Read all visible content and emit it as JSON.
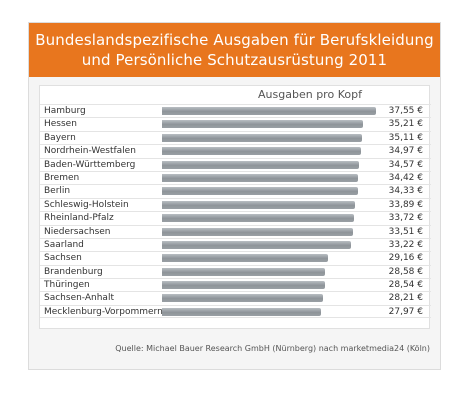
{
  "chart_data": {
    "type": "bar",
    "orientation": "horizontal",
    "title": "Bundeslandspezifische Ausgaben für Berufskleidung und Persönliche Schutzausrüstung 2011",
    "title_lines": [
      "Bundeslandspezifische Ausgaben für Berufskleidung",
      "und Persönliche Schutzausrüstung 2011"
    ],
    "caption": "Ausgaben pro Kopf",
    "source": "Quelle: Michael Bauer Research GmbH (Nürnberg) nach marketmedia24 (Köln)",
    "categories": [
      "Hamburg",
      "Hessen",
      "Bayern",
      "Nordrhein-Westfalen",
      "Baden-Württemberg",
      "Bremen",
      "Berlin",
      "Schleswig-Holstein",
      "Rheinland-Pfalz",
      "Niedersachsen",
      "Saarland",
      "Sachsen",
      "Brandenburg",
      "Thüringen",
      "Sachsen-Anhalt",
      "Mecklenburg-Vorpommern"
    ],
    "values": [
      37.55,
      35.21,
      35.11,
      34.97,
      34.57,
      34.42,
      34.33,
      33.89,
      33.72,
      33.51,
      33.22,
      29.16,
      28.58,
      28.54,
      28.21,
      27.97
    ],
    "value_labels": [
      "37,55 €",
      "35,21 €",
      "35,11 €",
      "34,97 €",
      "34,57 €",
      "34,42 €",
      "34,33 €",
      "33,89 €",
      "33,72 €",
      "33,51 €",
      "33,22 €",
      "29,16 €",
      "28,58 €",
      "28,54 €",
      "28,21 €",
      "27,97 €"
    ],
    "xlim": [
      0,
      37.55
    ],
    "grid": false,
    "colors": {
      "header": "#e8761e",
      "bar": "#9aa0a5"
    }
  }
}
